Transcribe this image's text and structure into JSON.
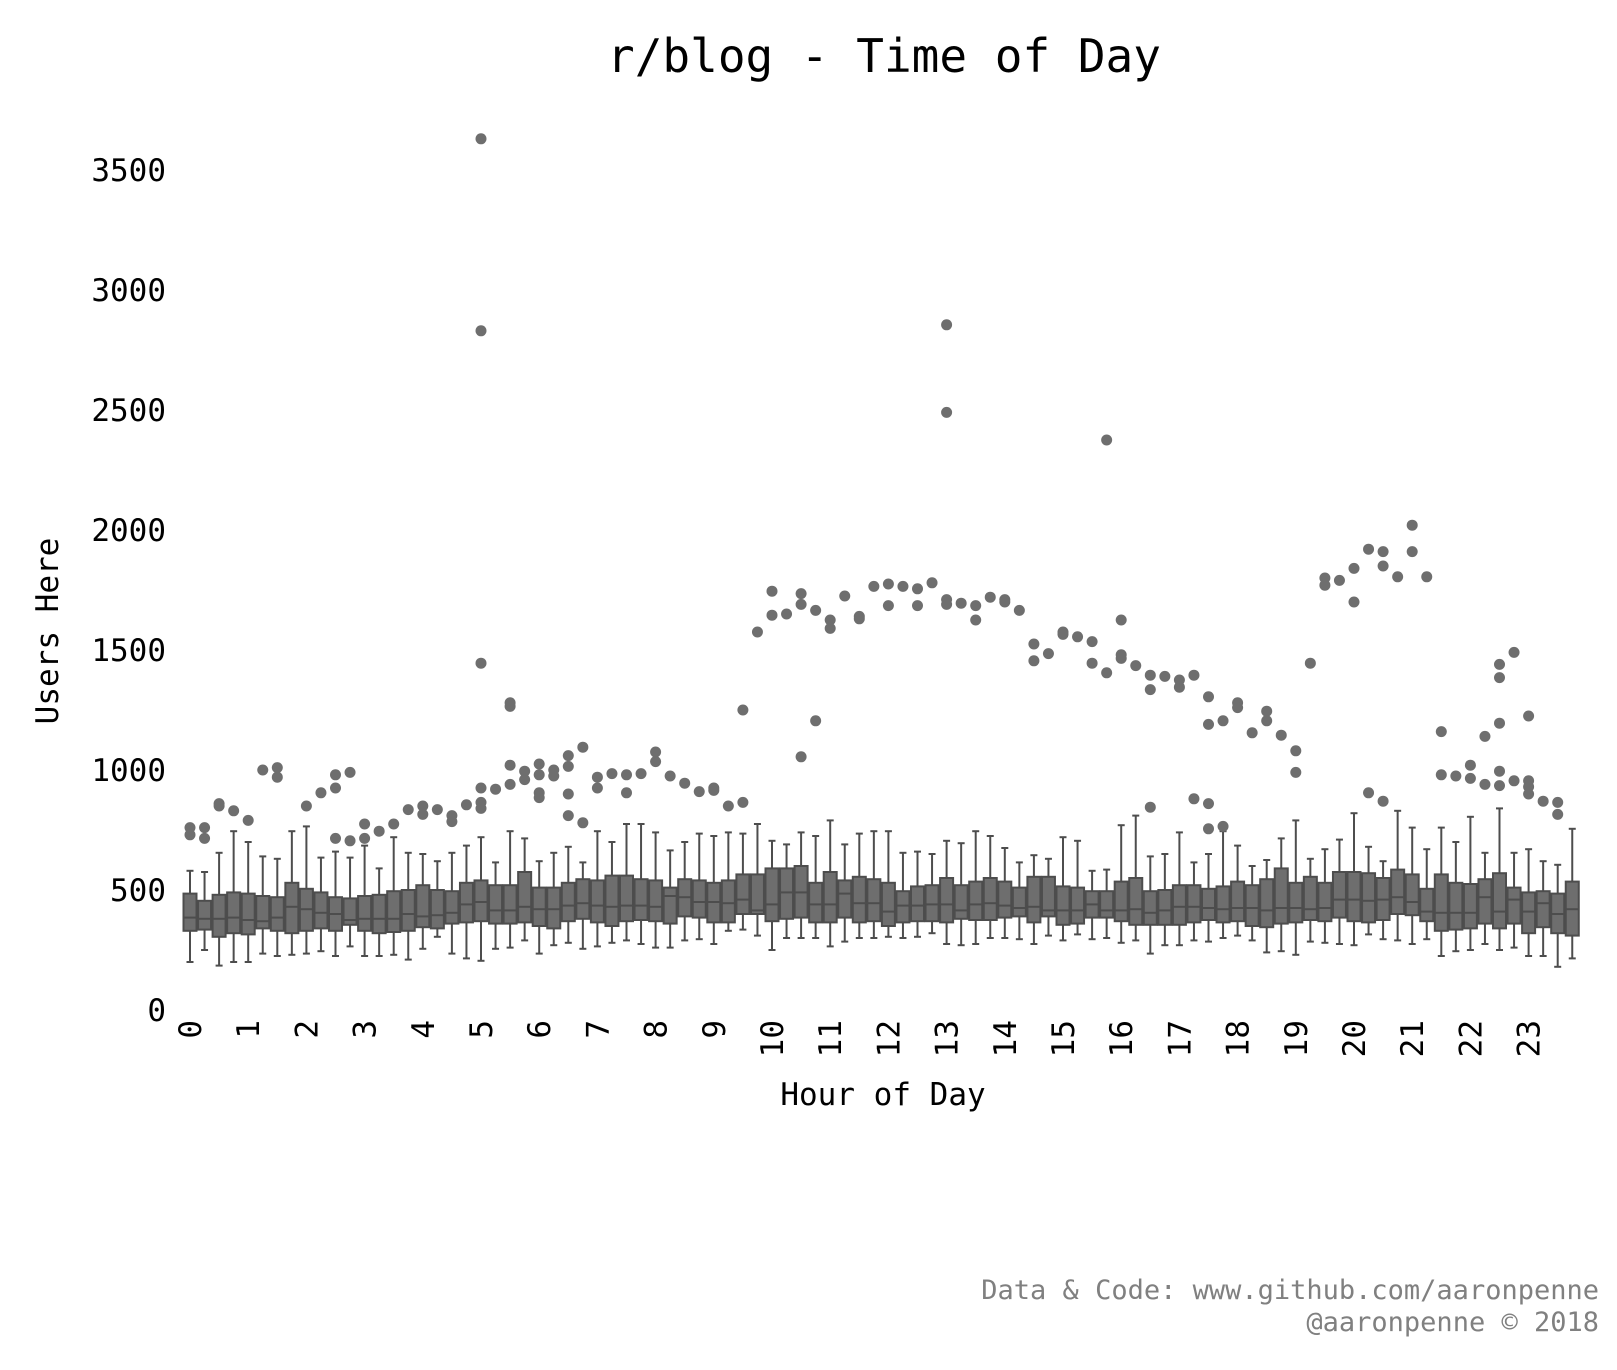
{
  "chart_data": {
    "type": "box",
    "title": "r/blog - Time of Day",
    "xlabel": "Hour of Day",
    "ylabel": "Users Here",
    "y_ticks": [
      0,
      500,
      1000,
      1500,
      2000,
      2500,
      3000,
      3500
    ],
    "x_tick_labels": [
      "0",
      "1",
      "2",
      "3",
      "4",
      "5",
      "6",
      "7",
      "8",
      "9",
      "10",
      "11",
      "12",
      "13",
      "14",
      "15",
      "16",
      "17",
      "18",
      "19",
      "20",
      "21",
      "22",
      "23"
    ],
    "ylim": [
      0,
      3700
    ],
    "boxes_per_hour": 4,
    "box_color": "#6e6e6e",
    "edge_color": "#4d4d4d",
    "outlier_color": "#6e6e6e",
    "grid": false,
    "boxes": [
      {
        "q1": 330,
        "median": 385,
        "q3": 485,
        "low": 200,
        "high": 580,
        "outliers": [
          760,
          730
        ]
      },
      {
        "q1": 335,
        "median": 380,
        "q3": 455,
        "low": 250,
        "high": 575,
        "outliers": [
          760,
          715
        ]
      },
      {
        "q1": 305,
        "median": 380,
        "q3": 480,
        "low": 185,
        "high": 655,
        "outliers": [
          860,
          850
        ]
      },
      {
        "q1": 320,
        "median": 385,
        "q3": 490,
        "low": 200,
        "high": 745,
        "outliers": [
          830
        ]
      },
      {
        "q1": 315,
        "median": 375,
        "q3": 485,
        "low": 200,
        "high": 700,
        "outliers": [
          790
        ]
      },
      {
        "q1": 340,
        "median": 370,
        "q3": 475,
        "low": 235,
        "high": 640,
        "outliers": [
          1000
        ]
      },
      {
        "q1": 330,
        "median": 385,
        "q3": 470,
        "low": 225,
        "high": 630,
        "outliers": [
          1010,
          970
        ]
      },
      {
        "q1": 320,
        "median": 430,
        "q3": 530,
        "low": 230,
        "high": 745,
        "outliers": []
      },
      {
        "q1": 330,
        "median": 420,
        "q3": 505,
        "low": 235,
        "high": 765,
        "outliers": [
          850
        ]
      },
      {
        "q1": 340,
        "median": 405,
        "q3": 490,
        "low": 245,
        "high": 635,
        "outliers": [
          905
        ]
      },
      {
        "q1": 330,
        "median": 400,
        "q3": 470,
        "low": 225,
        "high": 660,
        "outliers": [
          980,
          925,
          715
        ]
      },
      {
        "q1": 355,
        "median": 375,
        "q3": 465,
        "low": 265,
        "high": 635,
        "outliers": [
          990,
          705
        ]
      },
      {
        "q1": 330,
        "median": 380,
        "q3": 475,
        "low": 225,
        "high": 685,
        "outliers": [
          775,
          715
        ]
      },
      {
        "q1": 320,
        "median": 380,
        "q3": 480,
        "low": 225,
        "high": 590,
        "outliers": [
          745
        ]
      },
      {
        "q1": 325,
        "median": 380,
        "q3": 495,
        "low": 230,
        "high": 720,
        "outliers": [
          775
        ]
      },
      {
        "q1": 330,
        "median": 400,
        "q3": 500,
        "low": 210,
        "high": 655,
        "outliers": [
          835
        ]
      },
      {
        "q1": 345,
        "median": 390,
        "q3": 520,
        "low": 255,
        "high": 650,
        "outliers": [
          850,
          815
        ]
      },
      {
        "q1": 340,
        "median": 395,
        "q3": 500,
        "low": 305,
        "high": 620,
        "outliers": [
          835
        ]
      },
      {
        "q1": 360,
        "median": 405,
        "q3": 495,
        "low": 235,
        "high": 655,
        "outliers": [
          810,
          785
        ]
      },
      {
        "q1": 365,
        "median": 440,
        "q3": 530,
        "low": 215,
        "high": 685,
        "outliers": [
          855
        ]
      },
      {
        "q1": 370,
        "median": 450,
        "q3": 540,
        "low": 205,
        "high": 720,
        "outliers": [
          3630,
          2830,
          1445,
          925,
          865,
          840
        ]
      },
      {
        "q1": 360,
        "median": 415,
        "q3": 520,
        "low": 255,
        "high": 615,
        "outliers": [
          920
        ]
      },
      {
        "q1": 360,
        "median": 415,
        "q3": 520,
        "low": 260,
        "high": 745,
        "outliers": [
          1280,
          1265,
          1020,
          940
        ]
      },
      {
        "q1": 365,
        "median": 430,
        "q3": 575,
        "low": 290,
        "high": 715,
        "outliers": [
          995,
          960
        ]
      },
      {
        "q1": 350,
        "median": 420,
        "q3": 510,
        "low": 235,
        "high": 620,
        "outliers": [
          1025,
          980,
          905,
          885
        ]
      },
      {
        "q1": 340,
        "median": 420,
        "q3": 510,
        "low": 270,
        "high": 655,
        "outliers": [
          1000,
          975
        ]
      },
      {
        "q1": 370,
        "median": 435,
        "q3": 530,
        "low": 280,
        "high": 680,
        "outliers": [
          1060,
          1015,
          900,
          810
        ]
      },
      {
        "q1": 380,
        "median": 445,
        "q3": 545,
        "low": 255,
        "high": 615,
        "outliers": [
          1095,
          780
        ]
      },
      {
        "q1": 365,
        "median": 435,
        "q3": 540,
        "low": 265,
        "high": 745,
        "outliers": [
          970,
          925
        ]
      },
      {
        "q1": 350,
        "median": 430,
        "q3": 560,
        "low": 280,
        "high": 700,
        "outliers": [
          985
        ]
      },
      {
        "q1": 370,
        "median": 435,
        "q3": 560,
        "low": 290,
        "high": 775,
        "outliers": [
          980,
          905
        ]
      },
      {
        "q1": 375,
        "median": 435,
        "q3": 545,
        "low": 275,
        "high": 775,
        "outliers": [
          985
        ]
      },
      {
        "q1": 370,
        "median": 430,
        "q3": 540,
        "low": 260,
        "high": 740,
        "outliers": [
          1075,
          1035
        ]
      },
      {
        "q1": 360,
        "median": 475,
        "q3": 510,
        "low": 260,
        "high": 665,
        "outliers": [
          975
        ]
      },
      {
        "q1": 390,
        "median": 470,
        "q3": 545,
        "low": 290,
        "high": 700,
        "outliers": [
          945
        ]
      },
      {
        "q1": 385,
        "median": 450,
        "q3": 540,
        "low": 295,
        "high": 735,
        "outliers": [
          910
        ]
      },
      {
        "q1": 365,
        "median": 450,
        "q3": 530,
        "low": 275,
        "high": 725,
        "outliers": [
          925,
          915
        ]
      },
      {
        "q1": 365,
        "median": 445,
        "q3": 540,
        "low": 330,
        "high": 740,
        "outliers": [
          850
        ]
      },
      {
        "q1": 400,
        "median": 460,
        "q3": 565,
        "low": 335,
        "high": 735,
        "outliers": [
          1250,
          865
        ]
      },
      {
        "q1": 400,
        "median": 415,
        "q3": 565,
        "low": 310,
        "high": 775,
        "outliers": [
          1575
        ]
      },
      {
        "q1": 370,
        "median": 440,
        "q3": 590,
        "low": 250,
        "high": 705,
        "outliers": [
          1745,
          1645
        ]
      },
      {
        "q1": 380,
        "median": 490,
        "q3": 590,
        "low": 300,
        "high": 690,
        "outliers": [
          1650
        ]
      },
      {
        "q1": 385,
        "median": 490,
        "q3": 600,
        "low": 300,
        "high": 740,
        "outliers": [
          1735,
          1690,
          1055
        ]
      },
      {
        "q1": 365,
        "median": 440,
        "q3": 530,
        "low": 300,
        "high": 725,
        "outliers": [
          1665,
          1205
        ]
      },
      {
        "q1": 365,
        "median": 440,
        "q3": 575,
        "low": 265,
        "high": 790,
        "outliers": [
          1625,
          1590
        ]
      },
      {
        "q1": 385,
        "median": 485,
        "q3": 540,
        "low": 285,
        "high": 690,
        "outliers": [
          1725
        ]
      },
      {
        "q1": 365,
        "median": 445,
        "q3": 555,
        "low": 300,
        "high": 735,
        "outliers": [
          1640,
          1630
        ]
      },
      {
        "q1": 370,
        "median": 445,
        "q3": 545,
        "low": 300,
        "high": 745,
        "outliers": [
          1765
        ]
      },
      {
        "q1": 350,
        "median": 410,
        "q3": 530,
        "low": 305,
        "high": 745,
        "outliers": [
          1775,
          1685
        ]
      },
      {
        "q1": 365,
        "median": 435,
        "q3": 495,
        "low": 300,
        "high": 655,
        "outliers": [
          1765
        ]
      },
      {
        "q1": 370,
        "median": 435,
        "q3": 515,
        "low": 305,
        "high": 660,
        "outliers": [
          1755,
          1685
        ]
      },
      {
        "q1": 370,
        "median": 440,
        "q3": 520,
        "low": 320,
        "high": 650,
        "outliers": [
          1780
        ]
      },
      {
        "q1": 365,
        "median": 440,
        "q3": 550,
        "low": 275,
        "high": 705,
        "outliers": [
          2855,
          2490,
          1710,
          1690
        ]
      },
      {
        "q1": 380,
        "median": 415,
        "q3": 520,
        "low": 270,
        "high": 695,
        "outliers": [
          1695
        ]
      },
      {
        "q1": 375,
        "median": 440,
        "q3": 535,
        "low": 275,
        "high": 745,
        "outliers": [
          1685,
          1625
        ]
      },
      {
        "q1": 375,
        "median": 445,
        "q3": 550,
        "low": 300,
        "high": 725,
        "outliers": [
          1720
        ]
      },
      {
        "q1": 385,
        "median": 435,
        "q3": 535,
        "low": 300,
        "high": 675,
        "outliers": [
          1710,
          1700
        ]
      },
      {
        "q1": 390,
        "median": 425,
        "q3": 510,
        "low": 295,
        "high": 615,
        "outliers": [
          1665
        ]
      },
      {
        "q1": 365,
        "median": 430,
        "q3": 555,
        "low": 275,
        "high": 645,
        "outliers": [
          1525,
          1455
        ]
      },
      {
        "q1": 390,
        "median": 415,
        "q3": 555,
        "low": 310,
        "high": 630,
        "outliers": [
          1485
        ]
      },
      {
        "q1": 355,
        "median": 415,
        "q3": 515,
        "low": 290,
        "high": 720,
        "outliers": [
          1575,
          1565
        ]
      },
      {
        "q1": 360,
        "median": 415,
        "q3": 510,
        "low": 315,
        "high": 705,
        "outliers": [
          1555
        ]
      },
      {
        "q1": 385,
        "median": 440,
        "q3": 495,
        "low": 295,
        "high": 580,
        "outliers": [
          1535,
          1445
        ]
      },
      {
        "q1": 385,
        "median": 415,
        "q3": 495,
        "low": 300,
        "high": 585,
        "outliers": [
          2375,
          1405
        ]
      },
      {
        "q1": 370,
        "median": 415,
        "q3": 535,
        "low": 280,
        "high": 770,
        "outliers": [
          1625,
          1480,
          1465
        ]
      },
      {
        "q1": 355,
        "median": 420,
        "q3": 550,
        "low": 290,
        "high": 810,
        "outliers": [
          1435
        ]
      },
      {
        "q1": 355,
        "median": 405,
        "q3": 495,
        "low": 235,
        "high": 640,
        "outliers": [
          1395,
          1335,
          845
        ]
      },
      {
        "q1": 355,
        "median": 415,
        "q3": 500,
        "low": 270,
        "high": 650,
        "outliers": [
          1390
        ]
      },
      {
        "q1": 355,
        "median": 430,
        "q3": 520,
        "low": 270,
        "high": 740,
        "outliers": [
          1375,
          1345
        ]
      },
      {
        "q1": 365,
        "median": 430,
        "q3": 520,
        "low": 290,
        "high": 615,
        "outliers": [
          1395,
          880
        ]
      },
      {
        "q1": 375,
        "median": 425,
        "q3": 505,
        "low": 285,
        "high": 650,
        "outliers": [
          1305,
          1190,
          860,
          755
        ]
      },
      {
        "q1": 365,
        "median": 420,
        "q3": 515,
        "low": 300,
        "high": 745,
        "outliers": [
          1205,
          765
        ]
      },
      {
        "q1": 370,
        "median": 425,
        "q3": 535,
        "low": 310,
        "high": 685,
        "outliers": [
          1280,
          1260
        ]
      },
      {
        "q1": 350,
        "median": 425,
        "q3": 520,
        "low": 290,
        "high": 600,
        "outliers": [
          1155
        ]
      },
      {
        "q1": 345,
        "median": 415,
        "q3": 545,
        "low": 240,
        "high": 625,
        "outliers": [
          1245,
          1205
        ]
      },
      {
        "q1": 360,
        "median": 425,
        "q3": 590,
        "low": 245,
        "high": 715,
        "outliers": [
          1145
        ]
      },
      {
        "q1": 365,
        "median": 425,
        "q3": 530,
        "low": 230,
        "high": 790,
        "outliers": [
          1080,
          990
        ]
      },
      {
        "q1": 375,
        "median": 420,
        "q3": 555,
        "low": 285,
        "high": 630,
        "outliers": [
          1445
        ]
      },
      {
        "q1": 370,
        "median": 425,
        "q3": 530,
        "low": 280,
        "high": 670,
        "outliers": [
          1800,
          1770
        ]
      },
      {
        "q1": 385,
        "median": 460,
        "q3": 575,
        "low": 275,
        "high": 710,
        "outliers": [
          1790
        ]
      },
      {
        "q1": 370,
        "median": 460,
        "q3": 575,
        "low": 270,
        "high": 820,
        "outliers": [
          1840,
          1700
        ]
      },
      {
        "q1": 365,
        "median": 455,
        "q3": 570,
        "low": 315,
        "high": 680,
        "outliers": [
          1920,
          905
        ]
      },
      {
        "q1": 375,
        "median": 460,
        "q3": 550,
        "low": 295,
        "high": 620,
        "outliers": [
          1910,
          1850,
          870
        ]
      },
      {
        "q1": 400,
        "median": 470,
        "q3": 585,
        "low": 290,
        "high": 830,
        "outliers": [
          1805
        ]
      },
      {
        "q1": 395,
        "median": 450,
        "q3": 565,
        "low": 275,
        "high": 760,
        "outliers": [
          2020,
          1910
        ]
      },
      {
        "q1": 370,
        "median": 410,
        "q3": 505,
        "low": 295,
        "high": 670,
        "outliers": [
          1805
        ]
      },
      {
        "q1": 330,
        "median": 405,
        "q3": 565,
        "low": 225,
        "high": 760,
        "outliers": [
          1160,
          980
        ]
      },
      {
        "q1": 335,
        "median": 405,
        "q3": 530,
        "low": 245,
        "high": 700,
        "outliers": [
          975
        ]
      },
      {
        "q1": 340,
        "median": 405,
        "q3": 525,
        "low": 250,
        "high": 805,
        "outliers": [
          1020,
          965
        ]
      },
      {
        "q1": 360,
        "median": 470,
        "q3": 545,
        "low": 275,
        "high": 655,
        "outliers": [
          1140,
          940
        ]
      },
      {
        "q1": 340,
        "median": 410,
        "q3": 570,
        "low": 250,
        "high": 840,
        "outliers": [
          1440,
          1385,
          1195,
          995,
          935
        ]
      },
      {
        "q1": 360,
        "median": 460,
        "q3": 510,
        "low": 260,
        "high": 655,
        "outliers": [
          1490,
          955
        ]
      },
      {
        "q1": 320,
        "median": 410,
        "q3": 490,
        "low": 225,
        "high": 670,
        "outliers": [
          1225,
          955,
          930,
          900
        ]
      },
      {
        "q1": 345,
        "median": 445,
        "q3": 495,
        "low": 225,
        "high": 620,
        "outliers": [
          870
        ]
      },
      {
        "q1": 320,
        "median": 400,
        "q3": 485,
        "low": 180,
        "high": 605,
        "outliers": [
          865,
          815
        ]
      },
      {
        "q1": 310,
        "median": 420,
        "q3": 535,
        "low": 215,
        "high": 755,
        "outliers": []
      }
    ],
    "credits": [
      "Data & Code: www.github.com/aaronpenne",
      "@aaronpenne © 2018"
    ]
  }
}
